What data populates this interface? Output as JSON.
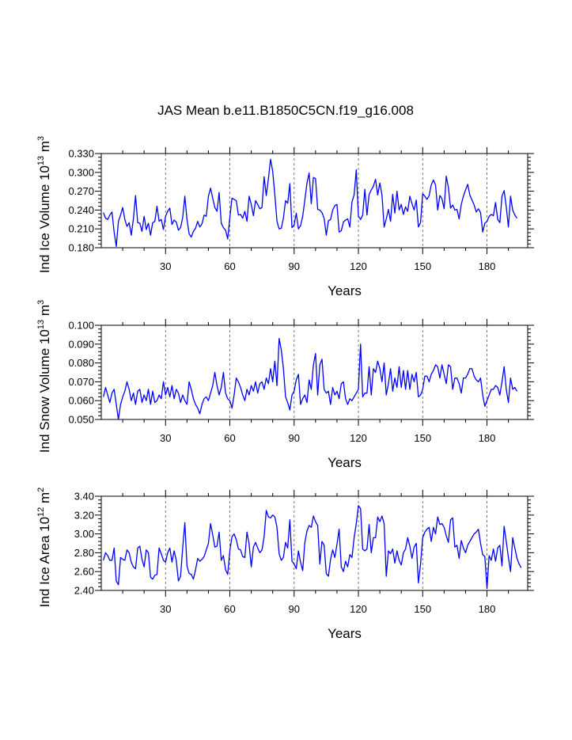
{
  "page_title": "JAS Mean b.e11.B1850C5CN.f19_g16.008",
  "colors": {
    "series": "#0000ff",
    "reference_line": "#555555",
    "axis": "#000000"
  },
  "chart_data": [
    {
      "type": "line",
      "name": "ice-volume",
      "title": "",
      "xlabel": "Years",
      "ylabel_parts": {
        "base": "Ind Ice Volume 10",
        "exp": "13",
        "unit": " m",
        "unit_exp": "3"
      },
      "xlim": [
        0,
        199
      ],
      "ylim": [
        0.18,
        0.33
      ],
      "xticks": [
        30,
        60,
        90,
        120,
        150,
        180
      ],
      "xtick_labels": [
        "30",
        "60",
        "90",
        "120",
        "150",
        "180"
      ],
      "yticks": [
        0.18,
        0.21,
        0.24,
        0.27,
        0.3,
        0.33
      ],
      "ytick_labels": [
        "0.180",
        "0.210",
        "0.240",
        "0.270",
        "0.300",
        "0.330"
      ],
      "reference_lines": [
        30,
        60,
        90,
        120,
        150,
        180
      ],
      "x_start": 1,
      "values": [
        0.236,
        0.227,
        0.225,
        0.232,
        0.237,
        0.205,
        0.182,
        0.222,
        0.232,
        0.244,
        0.225,
        0.214,
        0.22,
        0.2,
        0.226,
        0.263,
        0.22,
        0.219,
        0.206,
        0.23,
        0.209,
        0.219,
        0.2,
        0.22,
        0.222,
        0.246,
        0.222,
        0.225,
        0.209,
        0.23,
        0.238,
        0.243,
        0.217,
        0.224,
        0.221,
        0.208,
        0.212,
        0.228,
        0.262,
        0.225,
        0.202,
        0.197,
        0.206,
        0.211,
        0.222,
        0.213,
        0.218,
        0.232,
        0.23,
        0.262,
        0.275,
        0.259,
        0.244,
        0.238,
        0.268,
        0.219,
        0.212,
        0.208,
        0.194,
        0.228,
        0.259,
        0.257,
        0.255,
        0.232,
        0.233,
        0.227,
        0.238,
        0.222,
        0.262,
        0.249,
        0.231,
        0.255,
        0.249,
        0.242,
        0.244,
        0.293,
        0.263,
        0.29,
        0.321,
        0.302,
        0.264,
        0.222,
        0.21,
        0.211,
        0.227,
        0.255,
        0.251,
        0.282,
        0.212,
        0.216,
        0.235,
        0.21,
        0.215,
        0.23,
        0.256,
        0.283,
        0.299,
        0.25,
        0.292,
        0.29,
        0.241,
        0.24,
        0.236,
        0.227,
        0.2,
        0.223,
        0.225,
        0.24,
        0.247,
        0.249,
        0.205,
        0.207,
        0.221,
        0.224,
        0.226,
        0.213,
        0.253,
        0.264,
        0.304,
        0.23,
        0.225,
        0.232,
        0.273,
        0.232,
        0.265,
        0.272,
        0.278,
        0.289,
        0.264,
        0.283,
        0.264,
        0.213,
        0.226,
        0.241,
        0.222,
        0.265,
        0.235,
        0.27,
        0.24,
        0.249,
        0.233,
        0.245,
        0.238,
        0.262,
        0.25,
        0.24,
        0.256,
        0.213,
        0.22,
        0.266,
        0.262,
        0.257,
        0.263,
        0.28,
        0.288,
        0.28,
        0.24,
        0.263,
        0.258,
        0.242,
        0.294,
        0.276,
        0.243,
        0.248,
        0.24,
        0.241,
        0.226,
        0.249,
        0.262,
        0.272,
        0.281,
        0.264,
        0.256,
        0.248,
        0.237,
        0.242,
        0.236,
        0.205,
        0.219,
        0.222,
        0.23,
        0.233,
        0.231,
        0.252,
        0.225,
        0.22,
        0.262,
        0.271,
        0.245,
        0.213,
        0.262,
        0.24,
        0.232,
        0.227
      ]
    },
    {
      "type": "line",
      "name": "snow-volume",
      "title": "",
      "xlabel": "Years",
      "ylabel_parts": {
        "base": "Ind Snow Volume 10",
        "exp": "13",
        "unit": " m",
        "unit_exp": "3"
      },
      "xlim": [
        0,
        199
      ],
      "ylim": [
        0.05,
        0.1
      ],
      "xticks": [
        30,
        60,
        90,
        120,
        150,
        180
      ],
      "xtick_labels": [
        "30",
        "60",
        "90",
        "120",
        "150",
        "180"
      ],
      "yticks": [
        0.05,
        0.06,
        0.07,
        0.08,
        0.09,
        0.1
      ],
      "ytick_labels": [
        "0.050",
        "0.060",
        "0.070",
        "0.080",
        "0.090",
        "0.100"
      ],
      "reference_lines": [
        30,
        60,
        90,
        120,
        150,
        180
      ],
      "x_start": 1,
      "values": [
        0.062,
        0.067,
        0.063,
        0.059,
        0.064,
        0.066,
        0.058,
        0.05,
        0.058,
        0.062,
        0.065,
        0.07,
        0.066,
        0.06,
        0.064,
        0.058,
        0.065,
        0.066,
        0.059,
        0.063,
        0.06,
        0.066,
        0.058,
        0.065,
        0.059,
        0.06,
        0.063,
        0.061,
        0.07,
        0.063,
        0.067,
        0.062,
        0.068,
        0.061,
        0.066,
        0.064,
        0.059,
        0.063,
        0.06,
        0.058,
        0.07,
        0.066,
        0.061,
        0.058,
        0.056,
        0.053,
        0.058,
        0.061,
        0.062,
        0.06,
        0.064,
        0.068,
        0.075,
        0.068,
        0.063,
        0.067,
        0.075,
        0.064,
        0.061,
        0.06,
        0.056,
        0.063,
        0.072,
        0.07,
        0.067,
        0.063,
        0.06,
        0.066,
        0.063,
        0.068,
        0.065,
        0.07,
        0.064,
        0.069,
        0.07,
        0.066,
        0.072,
        0.069,
        0.077,
        0.07,
        0.081,
        0.068,
        0.093,
        0.087,
        0.077,
        0.062,
        0.059,
        0.055,
        0.063,
        0.065,
        0.071,
        0.074,
        0.058,
        0.061,
        0.063,
        0.059,
        0.071,
        0.066,
        0.079,
        0.085,
        0.063,
        0.079,
        0.082,
        0.066,
        0.064,
        0.065,
        0.058,
        0.067,
        0.063,
        0.065,
        0.061,
        0.069,
        0.07,
        0.061,
        0.058,
        0.061,
        0.06,
        0.062,
        0.064,
        0.066,
        0.09,
        0.062,
        0.064,
        0.064,
        0.078,
        0.063,
        0.077,
        0.075,
        0.081,
        0.077,
        0.07,
        0.08,
        0.063,
        0.069,
        0.077,
        0.065,
        0.072,
        0.067,
        0.078,
        0.067,
        0.076,
        0.066,
        0.076,
        0.066,
        0.074,
        0.07,
        0.075,
        0.062,
        0.063,
        0.066,
        0.073,
        0.073,
        0.07,
        0.074,
        0.076,
        0.079,
        0.078,
        0.072,
        0.079,
        0.074,
        0.069,
        0.079,
        0.078,
        0.066,
        0.072,
        0.072,
        0.069,
        0.064,
        0.072,
        0.072,
        0.074,
        0.077,
        0.077,
        0.073,
        0.071,
        0.07,
        0.072,
        0.063,
        0.057,
        0.06,
        0.063,
        0.066,
        0.066,
        0.068,
        0.067,
        0.063,
        0.07,
        0.078,
        0.066,
        0.059,
        0.072,
        0.066,
        0.067,
        0.065
      ]
    },
    {
      "type": "line",
      "name": "ice-area",
      "title": "",
      "xlabel": "Years",
      "ylabel_parts": {
        "base": "Ind Ice Area 10",
        "exp": "12",
        "unit": " m",
        "unit_exp": "2"
      },
      "xlim": [
        0,
        199
      ],
      "ylim": [
        2.4,
        3.4
      ],
      "xticks": [
        30,
        60,
        90,
        120,
        150,
        180
      ],
      "xtick_labels": [
        "30",
        "60",
        "90",
        "120",
        "150",
        "180"
      ],
      "yticks": [
        2.4,
        2.6,
        2.8,
        3.0,
        3.2,
        3.4
      ],
      "ytick_labels": [
        "2.40",
        "2.60",
        "2.80",
        "3.00",
        "3.20",
        "3.40"
      ],
      "reference_lines": [
        30,
        60,
        90,
        120,
        150,
        180
      ],
      "x_start": 1,
      "values": [
        2.72,
        2.8,
        2.77,
        2.72,
        2.72,
        2.85,
        2.5,
        2.46,
        2.75,
        2.73,
        2.72,
        2.83,
        2.8,
        2.7,
        2.65,
        2.63,
        2.85,
        2.87,
        2.73,
        2.65,
        2.83,
        2.8,
        2.54,
        2.52,
        2.56,
        2.57,
        2.85,
        2.79,
        2.72,
        2.7,
        2.8,
        2.85,
        2.7,
        2.82,
        2.72,
        2.5,
        2.55,
        2.85,
        3.12,
        2.66,
        2.58,
        2.57,
        2.52,
        2.62,
        2.74,
        2.71,
        2.73,
        2.76,
        2.83,
        2.9,
        3.11,
        2.99,
        2.86,
        2.87,
        3.02,
        2.72,
        2.77,
        2.62,
        2.57,
        2.82,
        2.97,
        3.0,
        2.94,
        2.84,
        2.83,
        2.76,
        2.75,
        3.02,
        2.89,
        2.65,
        2.86,
        2.91,
        2.85,
        2.8,
        2.83,
        2.97,
        3.25,
        3.18,
        3.17,
        3.2,
        3.18,
        3.07,
        2.79,
        2.72,
        2.75,
        2.91,
        2.85,
        3.15,
        2.71,
        2.68,
        2.63,
        2.82,
        2.7,
        2.61,
        2.91,
        3.03,
        3.09,
        3.07,
        3.19,
        3.13,
        3.09,
        2.68,
        2.92,
        2.88,
        2.58,
        2.55,
        2.73,
        2.83,
        2.75,
        2.89,
        3.05,
        2.65,
        2.6,
        2.71,
        2.65,
        2.78,
        2.75,
        2.96,
        3.11,
        3.3,
        3.27,
        2.84,
        2.82,
        2.84,
        3.1,
        2.8,
        2.96,
        2.96,
        3.18,
        3.13,
        3.19,
        3.11,
        2.55,
        2.82,
        2.79,
        2.84,
        2.69,
        2.82,
        2.72,
        2.67,
        2.8,
        2.84,
        2.96,
        2.87,
        2.74,
        2.86,
        2.9,
        2.48,
        2.68,
        2.96,
        3.02,
        3.05,
        3.07,
        2.92,
        3.07,
        3.0,
        3.18,
        3.1,
        3.11,
        3.07,
        2.98,
        2.91,
        3.15,
        3.17,
        2.86,
        2.88,
        2.74,
        2.93,
        2.85,
        2.8,
        2.88,
        2.92,
        2.96,
        3.0,
        3.02,
        3.05,
        2.9,
        2.78,
        2.76,
        2.42,
        2.77,
        2.72,
        2.84,
        2.71,
        2.85,
        2.88,
        2.66,
        3.08,
        2.92,
        2.75,
        2.6,
        2.96,
        2.85,
        2.74,
        2.68,
        2.64
      ]
    }
  ]
}
